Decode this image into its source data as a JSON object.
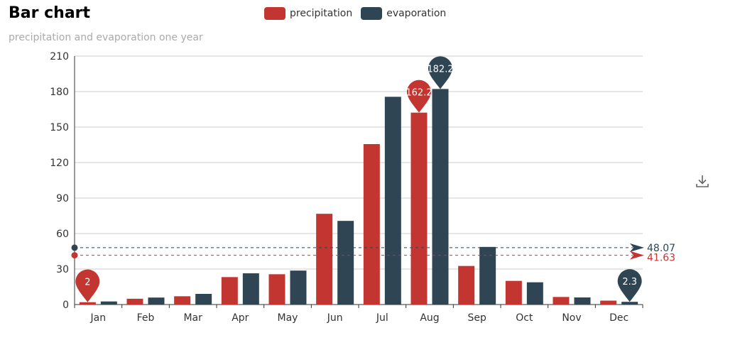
{
  "chart_data": {
    "type": "bar",
    "title": "Bar chart",
    "subtitle": "precipitation and evaporation one year",
    "categories": [
      "Jan",
      "Feb",
      "Mar",
      "Apr",
      "May",
      "Jun",
      "Jul",
      "Aug",
      "Sep",
      "Oct",
      "Nov",
      "Dec"
    ],
    "series": [
      {
        "name": "precipitation",
        "color": "#c23531",
        "values": [
          2.0,
          4.9,
          7.0,
          23.2,
          25.6,
          76.7,
          135.6,
          162.2,
          32.6,
          20.0,
          6.4,
          3.3
        ]
      },
      {
        "name": "evaporation",
        "color": "#2f4554",
        "values": [
          2.6,
          5.9,
          9.0,
          26.4,
          28.7,
          70.7,
          175.6,
          182.2,
          48.7,
          18.8,
          6.0,
          2.3
        ]
      }
    ],
    "ylim": [
      0,
      210
    ],
    "yticks": [
      0,
      30,
      60,
      90,
      120,
      150,
      180,
      210
    ],
    "mark_points": [
      {
        "series": 0,
        "index": 0,
        "label": "2"
      },
      {
        "series": 0,
        "index": 7,
        "label": "162.2"
      },
      {
        "series": 1,
        "index": 7,
        "label": "182.2"
      },
      {
        "series": 1,
        "index": 11,
        "label": "2.3"
      }
    ],
    "mark_lines": [
      {
        "series": 1,
        "value": 48.07,
        "label": "48.07"
      },
      {
        "series": 0,
        "value": 41.63,
        "label": "41.63"
      }
    ],
    "legend_position": "top-center",
    "grid": true
  },
  "toolbox": {
    "download_icon": "download-icon"
  }
}
